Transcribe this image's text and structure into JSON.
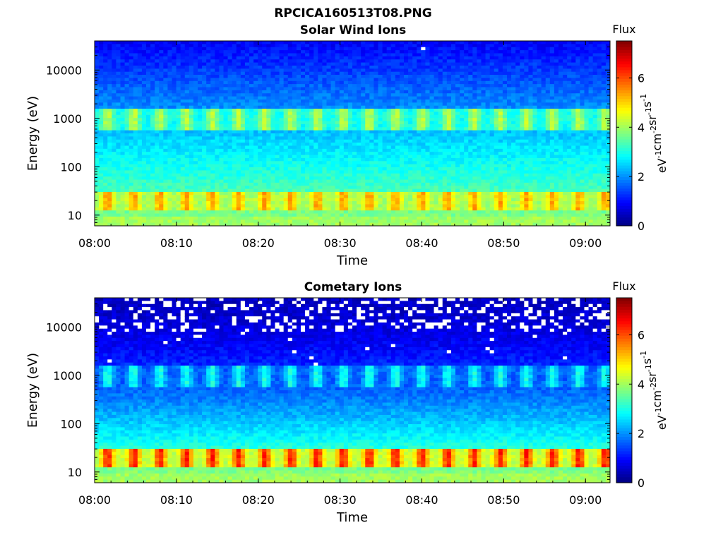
{
  "figure": {
    "title": "RPCICA160513T08.PNG"
  },
  "colorbar_label": "Flux",
  "colorbar_units": "eV-1cm-2sr-1s-1",
  "chart_data": [
    {
      "type": "heatmap",
      "title": "Solar Wind Ions",
      "xlabel": "Time",
      "ylabel": "Energy (eV)",
      "y_scale": "log",
      "ylim": [
        6,
        40000
      ],
      "xlim": [
        "08:00",
        "09:03"
      ],
      "x_ticks": [
        "08:00",
        "08:10",
        "08:20",
        "08:30",
        "08:40",
        "08:50",
        "09:00"
      ],
      "y_ticks": [
        "10",
        "100",
        "1000",
        "10000"
      ],
      "colorbar": {
        "label": "Flux",
        "units": "eV-1cm-2sr-1s-1",
        "range": [
          0,
          7.5
        ],
        "ticks": [
          "0",
          "2",
          "4",
          "6"
        ],
        "colormap": "jet"
      },
      "bands": [
        {
          "energy_range": [
            6,
            40000
          ],
          "flux": 1.5,
          "note": "background gradient from about 0.8 at top to about 3.8 near 10 eV"
        },
        {
          "energy_range": [
            550,
            1500
          ],
          "flux": 3.6,
          "pattern": "periodic",
          "period_min": 3.2
        },
        {
          "energy_range": [
            12,
            32
          ],
          "flux": 5.0,
          "pattern": "periodic",
          "period_min": 3.2
        }
      ]
    },
    {
      "type": "heatmap",
      "title": "Cometary Ions",
      "xlabel": "Time",
      "ylabel": "Energy (eV)",
      "y_scale": "log",
      "ylim": [
        6,
        40000
      ],
      "xlim": [
        "08:00",
        "09:03"
      ],
      "x_ticks": [
        "08:00",
        "08:10",
        "08:20",
        "08:30",
        "08:40",
        "08:50",
        "09:00"
      ],
      "y_ticks": [
        "10",
        "100",
        "1000",
        "10000"
      ],
      "colorbar": {
        "label": "Flux",
        "units": "eV-1cm-2sr-1s-1",
        "range": [
          0,
          7.5
        ],
        "ticks": [
          "0",
          "2",
          "4",
          "6"
        ],
        "colormap": "jet"
      },
      "bands": [
        {
          "energy_range": [
            8000,
            40000
          ],
          "flux": 0.4,
          "note": "sparse, many empty (white) bins"
        },
        {
          "energy_range": [
            550,
            1500
          ],
          "flux": 2.8,
          "pattern": "periodic",
          "period_min": 3.2
        },
        {
          "energy_range": [
            12,
            32
          ],
          "flux": 6.0,
          "pattern": "periodic",
          "period_min": 3.2
        }
      ]
    }
  ]
}
